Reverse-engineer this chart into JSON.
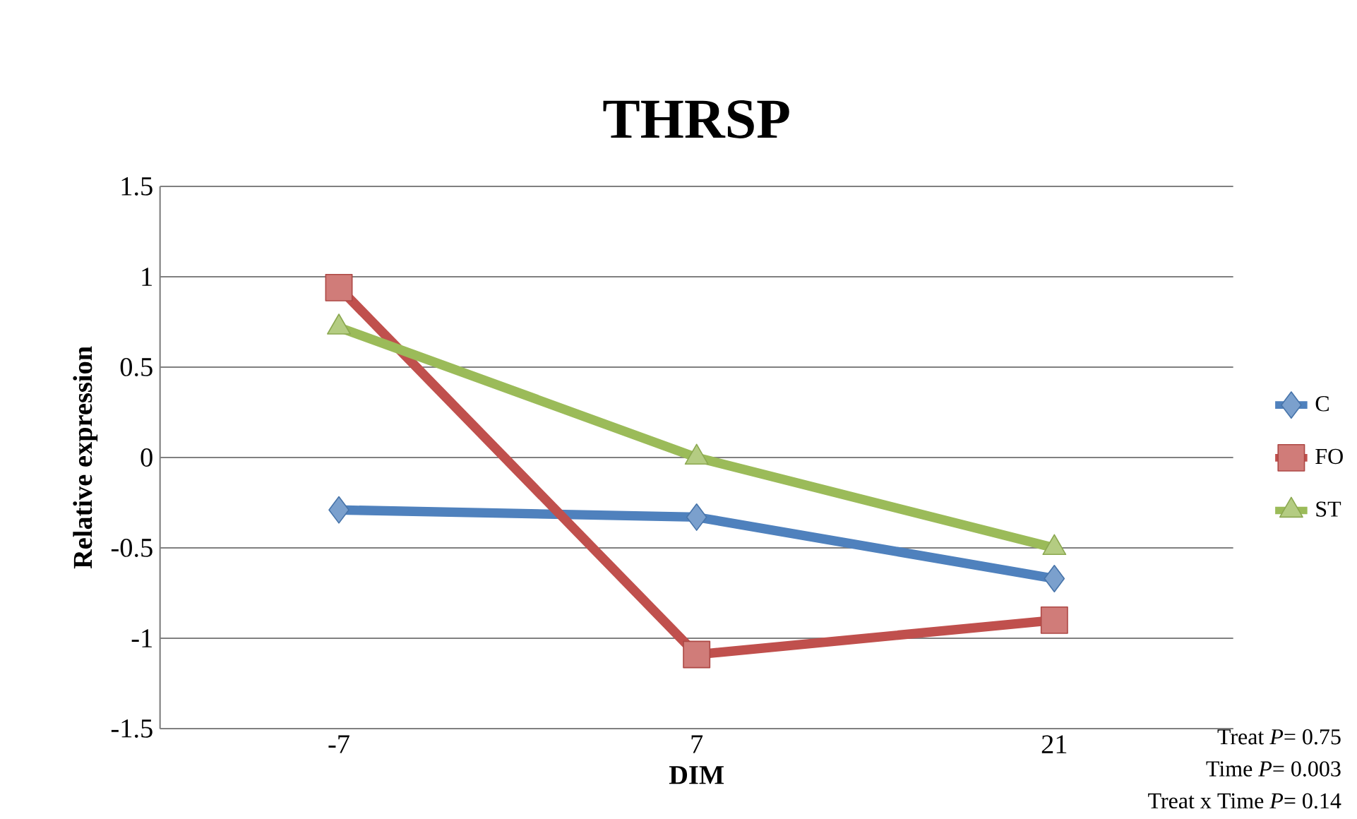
{
  "chart_data": {
    "type": "line",
    "title": "THRSP",
    "xlabel": "DIM",
    "ylabel": "Relative expression",
    "categories": [
      "-7",
      "7",
      "21"
    ],
    "series": [
      {
        "name": "C",
        "color": "#4f81bd",
        "marker": "diamond",
        "values": [
          -0.29,
          -0.33,
          -0.67
        ]
      },
      {
        "name": "FO",
        "color": "#c0504d",
        "marker": "square",
        "values": [
          0.94,
          -1.09,
          -0.9
        ]
      },
      {
        "name": "ST",
        "color": "#9bbb59",
        "marker": "triangle",
        "values": [
          0.72,
          0.0,
          -0.5
        ]
      }
    ],
    "ylim": [
      -1.5,
      1.5
    ],
    "yticks": [
      -1.5,
      -1,
      -0.5,
      0,
      0.5,
      1,
      1.5
    ],
    "grid": "y",
    "legend": "right",
    "annotations": [
      "Treat *P*= 0.75",
      "Time *P*= 0.003",
      "Treat x Time *P*= 0.14"
    ]
  }
}
